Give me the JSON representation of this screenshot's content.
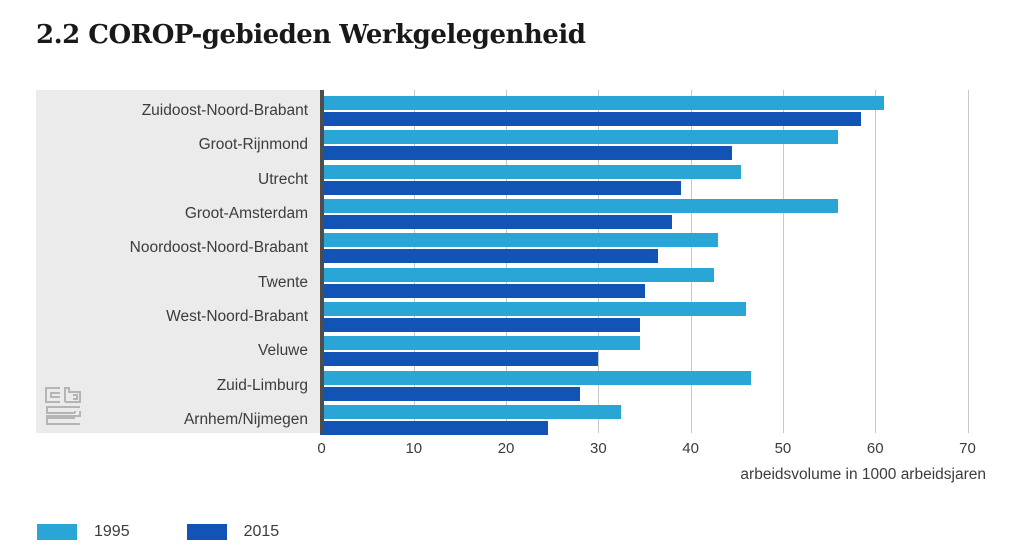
{
  "title": "2.2 COROP-gebieden Werkgelegenheid",
  "colors": {
    "series_1995": "#29a5d6",
    "series_2015": "#1254b6",
    "label_panel": "#ebebeb",
    "gridline": "#c9c9c9",
    "axis_line": "#4d4d4d",
    "text": "#3c3c3c",
    "title_text": "#191919",
    "logo": "#b5b5b5"
  },
  "chart_data": {
    "type": "bar",
    "orientation": "horizontal",
    "title": "2.2 COROP-gebieden Werkgelegenheid",
    "xlabel": "arbeidsvolume in 1000 arbeidsjaren",
    "ylabel": "",
    "xlim": [
      0,
      70
    ],
    "xticks": [
      0,
      10,
      20,
      30,
      40,
      50,
      60,
      70
    ],
    "grid": "vertical-gridlines-on",
    "legend_position": "bottom-left",
    "categories": [
      "Zuidoost-Noord-Brabant",
      "Groot-Rijnmond",
      "Utrecht",
      "Groot-Amsterdam",
      "Noordoost-Noord-Brabant",
      "Twente",
      "West-Noord-Brabant",
      "Veluwe",
      "Zuid-Limburg",
      "Arnhem/Nijmegen"
    ],
    "series": [
      {
        "name": "1995",
        "color_key": "series_1995",
        "values": [
          61,
          56,
          45.5,
          56,
          43,
          42.5,
          46,
          34.5,
          46.5,
          32.5
        ]
      },
      {
        "name": "2015",
        "color_key": "series_2015",
        "values": [
          58.5,
          44.5,
          39,
          38,
          36.5,
          35,
          34.5,
          30,
          28,
          24.5
        ]
      }
    ]
  },
  "legend": {
    "items": [
      {
        "label": "1995",
        "color_key": "series_1995"
      },
      {
        "label": "2015",
        "color_key": "series_2015"
      }
    ]
  },
  "logo_name": "cbs-logo"
}
